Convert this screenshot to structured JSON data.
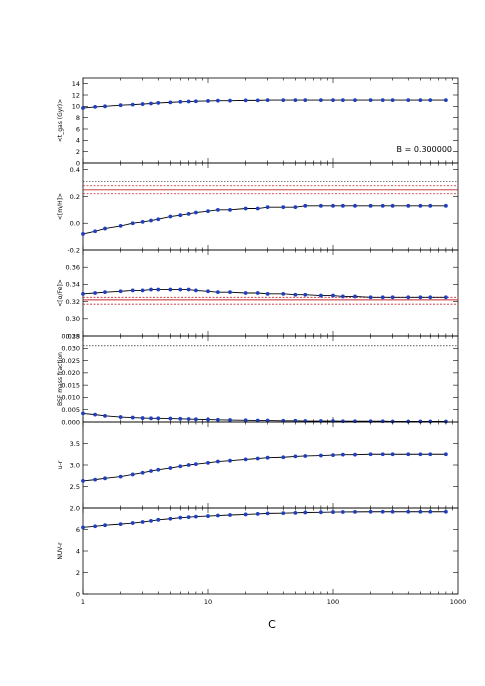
{
  "chart_data": {
    "type": "line",
    "xlabel": "C",
    "x_scale": "log",
    "xlim": [
      1,
      1000
    ],
    "x_ticks": [
      "1",
      "10",
      "100",
      "1000"
    ],
    "annotation": "B = 0.300000",
    "x": [
      1,
      1.25,
      1.5,
      2,
      2.5,
      3,
      3.5,
      4,
      5,
      6,
      7,
      8,
      10,
      12,
      15,
      20,
      25,
      30,
      40,
      50,
      60,
      80,
      100,
      120,
      150,
      200,
      250,
      300,
      400,
      500,
      600,
      800
    ],
    "panels": [
      {
        "ylabel": "<t_gas (Gyr)>",
        "ylim": [
          0,
          15
        ],
        "y_ticks": [
          "0",
          "2",
          "4",
          "6",
          "8",
          "10",
          "12",
          "14"
        ],
        "values": [
          9.7,
          9.9,
          10.0,
          10.2,
          10.3,
          10.4,
          10.5,
          10.6,
          10.7,
          10.8,
          10.85,
          10.9,
          10.95,
          11.0,
          11.0,
          11.05,
          11.05,
          11.1,
          11.1,
          11.1,
          11.1,
          11.1,
          11.1,
          11.1,
          11.1,
          11.1,
          11.1,
          11.1,
          11.1,
          11.1,
          11.1,
          11.1
        ],
        "ref_lines": []
      },
      {
        "ylabel": "<[m/H]>",
        "ylim": [
          -0.2,
          0.45
        ],
        "y_ticks": [
          "-0.2",
          "0.0",
          "0.2",
          "0.4"
        ],
        "values": [
          -0.08,
          -0.06,
          -0.04,
          -0.02,
          0.0,
          0.01,
          0.02,
          0.03,
          0.05,
          0.06,
          0.07,
          0.08,
          0.09,
          0.1,
          0.1,
          0.11,
          0.11,
          0.12,
          0.12,
          0.12,
          0.13,
          0.13,
          0.13,
          0.13,
          0.13,
          0.13,
          0.13,
          0.13,
          0.13,
          0.13,
          0.13,
          0.13
        ],
        "ref_lines": [
          {
            "value": 0.31,
            "style": "black-dotted"
          },
          {
            "value": 0.28,
            "style": "red-dotted"
          },
          {
            "value": 0.25,
            "style": "red-solid"
          },
          {
            "value": 0.22,
            "style": "red-dotted"
          }
        ]
      },
      {
        "ylabel": "<[α/Fe]>",
        "ylim": [
          0.28,
          0.38
        ],
        "y_ticks": [
          "0.28",
          "0.30",
          "0.32",
          "0.34",
          "0.36"
        ],
        "values": [
          0.329,
          0.33,
          0.331,
          0.332,
          0.333,
          0.333,
          0.334,
          0.334,
          0.334,
          0.334,
          0.334,
          0.333,
          0.332,
          0.331,
          0.331,
          0.33,
          0.33,
          0.329,
          0.329,
          0.328,
          0.328,
          0.327,
          0.327,
          0.326,
          0.326,
          0.325,
          0.325,
          0.325,
          0.325,
          0.325,
          0.325,
          0.325
        ],
        "ref_lines": [
          {
            "value": 0.325,
            "style": "red-dotted"
          },
          {
            "value": 0.322,
            "style": "red-solid"
          },
          {
            "value": 0.317,
            "style": "red-dotted"
          }
        ]
      },
      {
        "ylabel": "BSF mass fraction",
        "ylim": [
          0.0,
          0.035
        ],
        "y_ticks": [
          "0.000",
          "0.005",
          "0.010",
          "0.015",
          "0.020",
          "0.025",
          "0.030",
          "0.035"
        ],
        "values": [
          0.0035,
          0.003,
          0.0025,
          0.002,
          0.0018,
          0.0016,
          0.0015,
          0.0015,
          0.0014,
          0.0013,
          0.0012,
          0.0011,
          0.001,
          0.0009,
          0.0008,
          0.0007,
          0.0006,
          0.0006,
          0.0005,
          0.0005,
          0.0004,
          0.0004,
          0.0004,
          0.0003,
          0.0003,
          0.0003,
          0.0003,
          0.0002,
          0.0002,
          0.0002,
          0.0002,
          0.0002
        ],
        "ref_lines": [
          {
            "value": 0.031,
            "style": "black-dotted"
          }
        ]
      },
      {
        "ylabel": "u-r",
        "ylim": [
          2.0,
          4.0
        ],
        "y_ticks": [
          "2.0",
          "2.5",
          "3.0",
          "3.5"
        ],
        "values": [
          2.63,
          2.66,
          2.69,
          2.73,
          2.78,
          2.82,
          2.86,
          2.89,
          2.93,
          2.97,
          3.0,
          3.02,
          3.05,
          3.08,
          3.1,
          3.13,
          3.15,
          3.17,
          3.18,
          3.2,
          3.21,
          3.22,
          3.23,
          3.24,
          3.24,
          3.25,
          3.25,
          3.25,
          3.25,
          3.25,
          3.25,
          3.25
        ],
        "ref_lines": []
      },
      {
        "ylabel": "NUV-r",
        "ylim": [
          0,
          8
        ],
        "y_ticks": [
          "0",
          "2",
          "4",
          "6"
        ],
        "values": [
          6.2,
          6.3,
          6.4,
          6.5,
          6.6,
          6.7,
          6.8,
          6.9,
          7.0,
          7.1,
          7.15,
          7.2,
          7.25,
          7.3,
          7.35,
          7.4,
          7.45,
          7.5,
          7.52,
          7.55,
          7.58,
          7.6,
          7.62,
          7.63,
          7.64,
          7.65,
          7.65,
          7.65,
          7.65,
          7.65,
          7.65,
          7.65
        ],
        "ref_lines": []
      }
    ]
  }
}
